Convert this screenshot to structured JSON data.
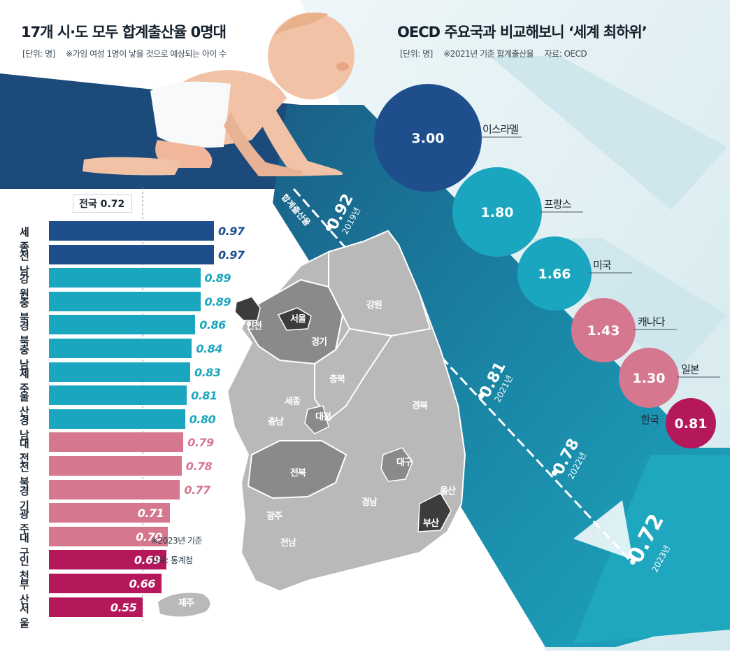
{
  "left_panel": {
    "title": "17개 시·도 모두 합계출산율 0명대",
    "unit": "[단위: 명]",
    "note": "※가임 여성 1명이 낳을 것으로 예상되는 아이 수",
    "national_label": "전국",
    "national_value": "0.72",
    "footnote": "※2023년 기준",
    "source": "자료: 통계청"
  },
  "right_panel": {
    "title": "OECD 주요국과 비교해보니 ‘세계 최하위’",
    "unit": "[단위: 명]",
    "note": "※2021년 기준 합계출산율",
    "source": "자료: OECD"
  },
  "trend_panel": {
    "label": "합계출산율"
  },
  "map_labels": [
    "서울",
    "인천",
    "경기",
    "강원",
    "충북",
    "세종",
    "대전",
    "충남",
    "경북",
    "대구",
    "울산",
    "전북",
    "경남",
    "부산",
    "광주",
    "전남",
    "제주"
  ],
  "colors": {
    "navy": "#1e4f8c",
    "teal": "#1aa6bf",
    "pink": "#d67790",
    "magenta": "#b5185a",
    "map_dark": "#3c3c3c",
    "map_mid": "#888888",
    "map_light": "#b9b9b9"
  },
  "chart_data": [
    {
      "type": "bar",
      "orientation": "horizontal",
      "categories": [
        "세종",
        "전남",
        "강원",
        "충북",
        "경북",
        "충남",
        "제주",
        "울산",
        "경남",
        "대전",
        "전북",
        "경기",
        "광주",
        "대구",
        "인천",
        "부산",
        "서울"
      ],
      "values": [
        0.97,
        0.97,
        0.89,
        0.89,
        0.86,
        0.84,
        0.83,
        0.81,
        0.8,
        0.79,
        0.78,
        0.77,
        0.71,
        0.7,
        0.69,
        0.66,
        0.55
      ],
      "value_labels": [
        "0.97",
        "0.97",
        "0.89",
        "0.89",
        "0.86",
        "0.84",
        "0.83",
        "0.81",
        "0.80",
        "0.79",
        "0.78",
        "0.77",
        "0.71",
        "0.70",
        "0.69",
        "0.66",
        "0.55"
      ],
      "bar_colors": [
        "#1e4f8c",
        "#1e4f8c",
        "#1aa6bf",
        "#1aa6bf",
        "#1aa6bf",
        "#1aa6bf",
        "#1aa6bf",
        "#1aa6bf",
        "#1aa6bf",
        "#d67790",
        "#d67790",
        "#d67790",
        "#d67790",
        "#d67790",
        "#b5185a",
        "#b5185a",
        "#b5185a"
      ],
      "reference_line": 0.72,
      "xlim": [
        0,
        1.0
      ]
    },
    {
      "type": "bubble",
      "categories": [
        "이스라엘",
        "프랑스",
        "미국",
        "캐나다",
        "일본",
        "한국"
      ],
      "values": [
        3.0,
        1.8,
        1.66,
        1.43,
        1.3,
        0.81
      ],
      "value_labels": [
        "3.00",
        "1.80",
        "1.66",
        "1.43",
        "1.30",
        "0.81"
      ],
      "bubble_colors": [
        "#1e4f8c",
        "#1aa6bf",
        "#1aa6bf",
        "#d67790",
        "#d67790",
        "#b5185a"
      ]
    },
    {
      "type": "line",
      "x": [
        "2019년",
        "2021년",
        "2022년",
        "2023년"
      ],
      "values": [
        0.92,
        0.81,
        0.78,
        0.72
      ],
      "value_labels": [
        "0.92",
        "0.81",
        "0.78",
        "0.72"
      ]
    }
  ]
}
